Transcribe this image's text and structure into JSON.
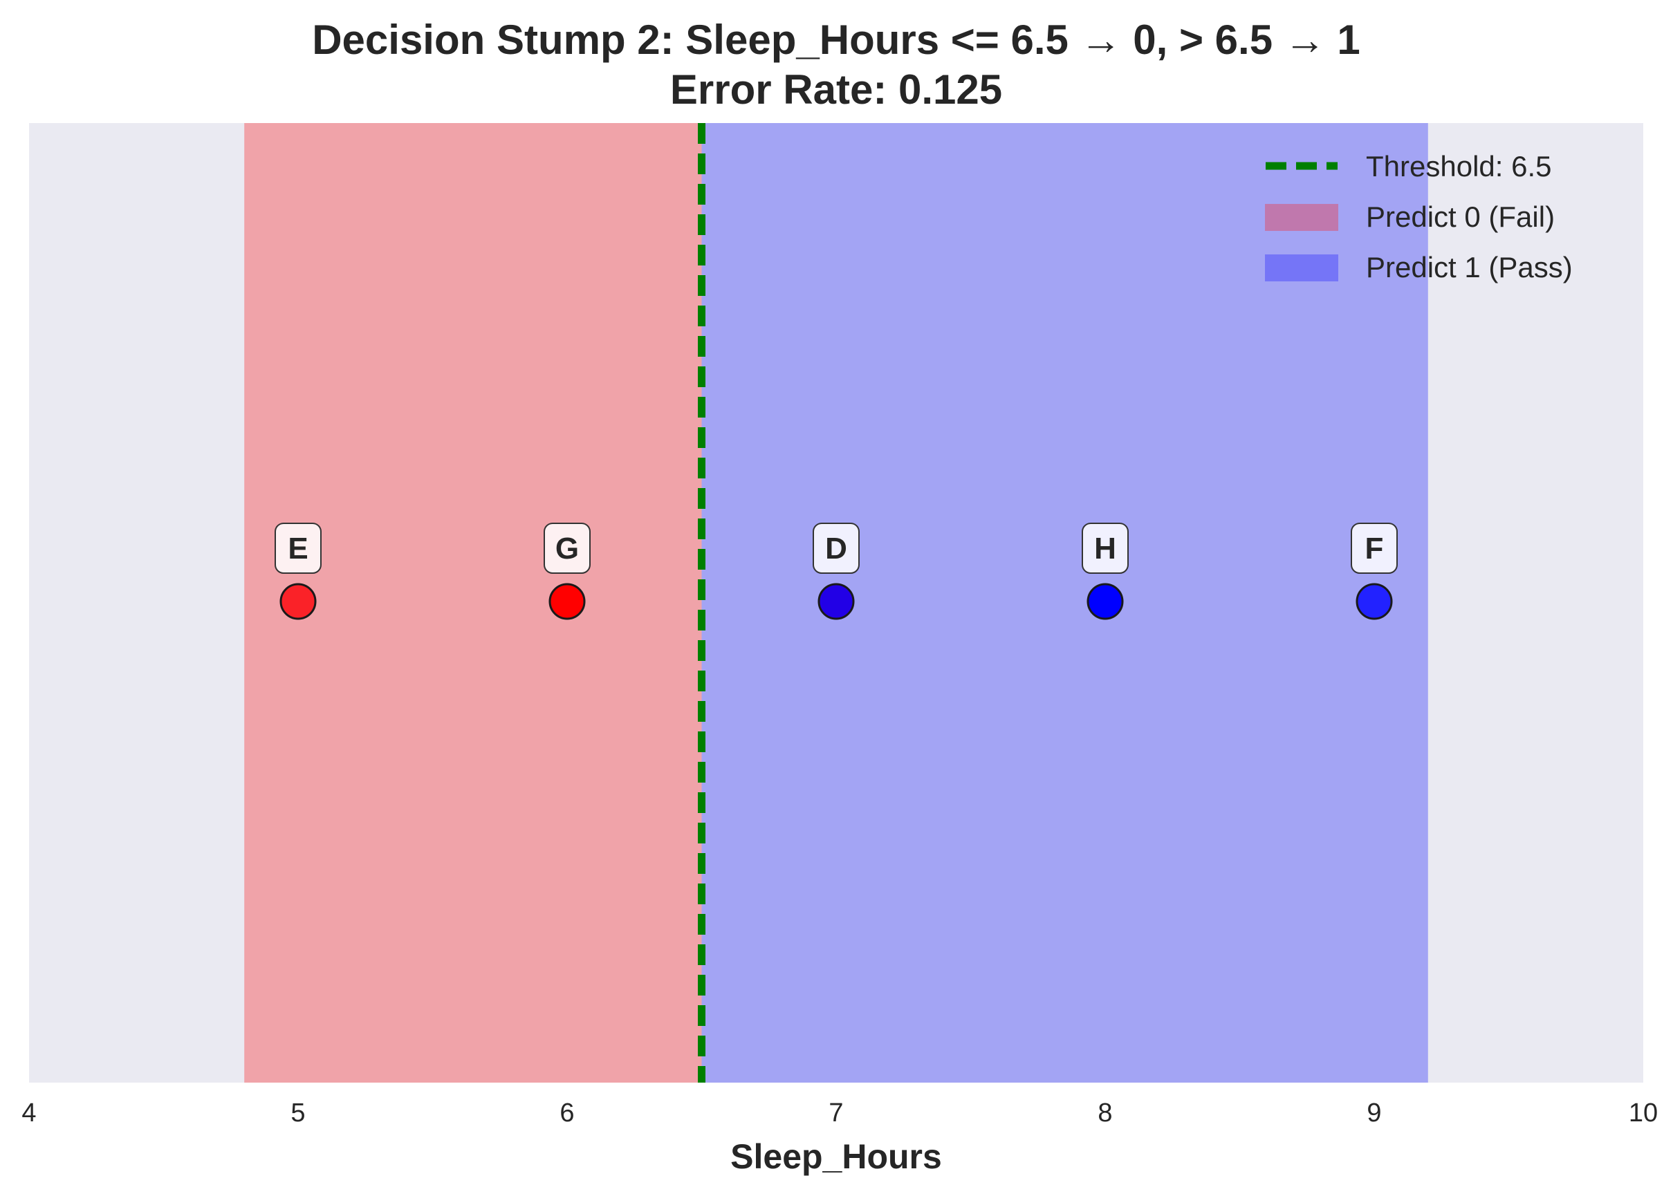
{
  "chart_data": {
    "type": "scatter",
    "title": "Decision Stump 2: Sleep_Hours <= 6.5 → 0, > 6.5 → 1",
    "subtitle": "Error Rate: 0.125",
    "xlabel": "Sleep_Hours",
    "ylabel": "",
    "xlim": [
      4,
      10
    ],
    "xticks": [
      "4",
      "5",
      "6",
      "7",
      "8",
      "9",
      "10"
    ],
    "grid": false,
    "legend_position": "top-right",
    "threshold": {
      "value": 6.5,
      "label": "Threshold: 6.5",
      "color": "#007f00",
      "style": "dashed"
    },
    "regions": [
      {
        "name": "Predict 0 (Fail)",
        "x_start": 4.8,
        "x_end": 6.5,
        "color": "#f0a3a9",
        "legend_color": "#c078ad"
      },
      {
        "name": "Predict 1 (Pass)",
        "x_start": 6.5,
        "x_end": 9.2,
        "color": "#a3a4f4",
        "legend_color": "#7575f7"
      }
    ],
    "points": [
      {
        "label": "E",
        "x": 5,
        "color": "#fa2228"
      },
      {
        "label": "G",
        "x": 6,
        "color": "#ff0000"
      },
      {
        "label": "D",
        "x": 7,
        "color": "#2200e6"
      },
      {
        "label": "H",
        "x": 8,
        "color": "#0000ff"
      },
      {
        "label": "F",
        "x": 9,
        "color": "#2222ff"
      }
    ],
    "background_color": "#eaeaf2"
  }
}
